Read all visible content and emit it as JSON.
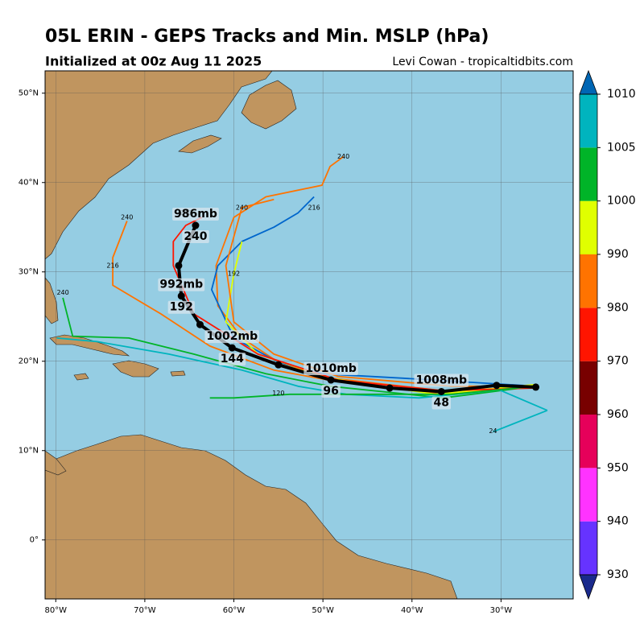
{
  "chart_data": {
    "type": "map",
    "title": "05L ERIN - GEPS Tracks and Min. MSLP (hPa)",
    "subtitle": "Initialized at 00z Aug 11 2025",
    "credit": "Levi Cowan - tropicaltidbits.com",
    "lon_range": [
      -81.2,
      -21.9
    ],
    "lat_range": [
      -6.6,
      52.5
    ],
    "lon_ticks": [
      {
        "value": -80,
        "label": "80°W"
      },
      {
        "value": -70,
        "label": "70°W"
      },
      {
        "value": -60,
        "label": "60°W"
      },
      {
        "value": -50,
        "label": "50°W"
      },
      {
        "value": -40,
        "label": "40°W"
      },
      {
        "value": -30,
        "label": "30°W"
      }
    ],
    "lat_ticks": [
      {
        "value": 0,
        "label": "0°"
      },
      {
        "value": 10,
        "label": "10°N"
      },
      {
        "value": 20,
        "label": "20°N"
      },
      {
        "value": 30,
        "label": "30°N"
      },
      {
        "value": 40,
        "label": "40°N"
      },
      {
        "value": 50,
        "label": "50°N"
      }
    ],
    "ocean_color": "#95cde3",
    "land_color": "#c0955f",
    "colorbar": {
      "levels": [
        930,
        940,
        950,
        960,
        970,
        980,
        990,
        1000,
        1005,
        1010
      ],
      "colors": [
        "#6633ff",
        "#ff33ff",
        "#e6005a",
        "#780000",
        "#ff1500",
        "#ff7300",
        "#e0ff00",
        "#00b428",
        "#00b4be"
      ],
      "extend_colors": [
        "#1a2a8c",
        "#0066b4"
      ]
    },
    "members": [
      {
        "color": "#ff7300",
        "lon": [
          -26.1,
          -36.5,
          -49.1,
          -55.0,
          -59.1,
          -61.8,
          -62.0,
          -60.0,
          -56.4,
          -50.1,
          -49.2,
          -47.7
        ],
        "lat": [
          17.1,
          16.7,
          18.1,
          19.9,
          22.6,
          26.2,
          30.7,
          36.1,
          38.4,
          39.7,
          41.8,
          42.9
        ],
        "hour_labels": [
          {
            "hour": 240,
            "lon": -47.7,
            "lat": 42.9
          }
        ]
      },
      {
        "color": "#0066cc",
        "lon": [
          -26.1,
          -41.0,
          -50.1,
          -55.0,
          -60.0,
          -62.5,
          -61.8,
          -59.1,
          -55.5,
          -52.8,
          -51.0
        ],
        "lat": [
          17.2,
          18.1,
          18.6,
          19.9,
          22.6,
          28.0,
          30.7,
          33.4,
          35.0,
          36.6,
          38.4
        ],
        "hour_labels": [
          {
            "hour": 216,
            "lon": -51.0,
            "lat": 37.2
          }
        ]
      },
      {
        "color": "#ff7300",
        "lon": [
          -26.1,
          -36.5,
          -48.3,
          -55.5,
          -62.7,
          -68.2,
          -73.6,
          -73.6,
          -72.0
        ],
        "lat": [
          17.2,
          16.3,
          17.7,
          19.0,
          21.7,
          25.3,
          28.5,
          31.6,
          35.7
        ],
        "hour_labels": [
          {
            "hour": 216,
            "lon": -73.6,
            "lat": 30.7
          },
          {
            "hour": 240,
            "lon": -72.0,
            "lat": 36.1
          }
        ]
      },
      {
        "color": "#00b428",
        "lon": [
          -26.1,
          -36.5,
          -49.2,
          -56.4,
          -64.5,
          -71.8,
          -78.1,
          -79.2
        ],
        "lat": [
          17.2,
          15.9,
          17.2,
          18.6,
          20.8,
          22.6,
          22.8,
          27.1
        ],
        "hour_labels": [
          {
            "hour": 240,
            "lon": -79.2,
            "lat": 27.7
          }
        ]
      },
      {
        "color": "#e0ff00",
        "lon": [
          -26.1,
          -37.4,
          -49.2,
          -57.3,
          -60.9,
          -60.0,
          -59.1
        ],
        "lat": [
          17.4,
          16.3,
          18.1,
          20.8,
          24.4,
          29.8,
          33.4
        ],
        "hour_labels": [
          {
            "hour": 192,
            "lon": -60.0,
            "lat": 29.8
          }
        ]
      },
      {
        "color": "#00b4be",
        "lon": [
          -24.8,
          -30.2,
          -39.2,
          -47.4,
          -52.8,
          -59.1,
          -67.3,
          -75.4,
          -79.9
        ],
        "lat": [
          14.5,
          16.8,
          15.9,
          16.3,
          17.2,
          19.0,
          20.8,
          22.2,
          22.6
        ],
        "hour_labels": []
      },
      {
        "color": "#ff7300",
        "lon": [
          -26.1,
          -35.6,
          -48.3,
          -55.5,
          -60.0,
          -60.9,
          -59.1,
          -55.5
        ],
        "lat": [
          17.2,
          17.2,
          18.3,
          20.8,
          24.4,
          30.7,
          37.2,
          38.1
        ],
        "hour_labels": [
          {
            "hour": 240,
            "lon": -59.1,
            "lat": 37.2
          }
        ]
      },
      {
        "color": "#ff1500",
        "lon": [
          -26.1,
          -36.5,
          -48.3,
          -57.3,
          -64.5,
          -66.8,
          -66.8,
          -65.4,
          -63.6
        ],
        "lat": [
          17.0,
          16.7,
          17.9,
          20.8,
          25.3,
          30.7,
          33.4,
          35.2,
          36.1
        ],
        "hour_labels": [
          {
            "hour": 240,
            "lon": -65.4,
            "lat": 36.6
          }
        ]
      },
      {
        "color": "#00b428",
        "lon": [
          -26.1,
          -35.6,
          -46.5,
          -53.7,
          -60.0,
          -62.7
        ],
        "lat": [
          17.2,
          16.3,
          16.3,
          16.3,
          15.9,
          15.9
        ],
        "hour_labels": [
          {
            "hour": 120,
            "lon": -55.0,
            "lat": 16.4
          }
        ]
      },
      {
        "color": "#00b4be",
        "lon": [
          -30.9,
          -24.8
        ],
        "lat": [
          12.1,
          14.5
        ],
        "hour_labels": [
          {
            "hour": 24,
            "lon": -30.9,
            "lat": 12.2
          }
        ]
      }
    ],
    "mean_track": {
      "color": "#000000",
      "lon": [
        -26.1,
        -30.5,
        -36.7,
        -42.5,
        -49.1,
        -55.0,
        -60.2,
        -63.8,
        -65.9,
        -66.2,
        -64.3
      ],
      "lat": [
        17.1,
        17.3,
        16.6,
        17.0,
        17.9,
        19.6,
        21.5,
        24.1,
        27.3,
        30.7,
        35.2
      ]
    },
    "mean_labels": [
      {
        "pressure": "1008mb",
        "hour": 48,
        "lon": -36.7,
        "lat": 16.6
      },
      {
        "pressure": "1010mb",
        "hour": 96,
        "lon": -49.1,
        "lat": 17.9
      },
      {
        "pressure": "1002mb",
        "hour": 144,
        "lon": -60.2,
        "lat": 21.5
      },
      {
        "pressure": "992mb",
        "hour": 192,
        "lon": -65.9,
        "lat": 27.3
      },
      {
        "pressure": "986mb",
        "hour": 240,
        "lon": -64.3,
        "lat": 35.2
      }
    ]
  }
}
